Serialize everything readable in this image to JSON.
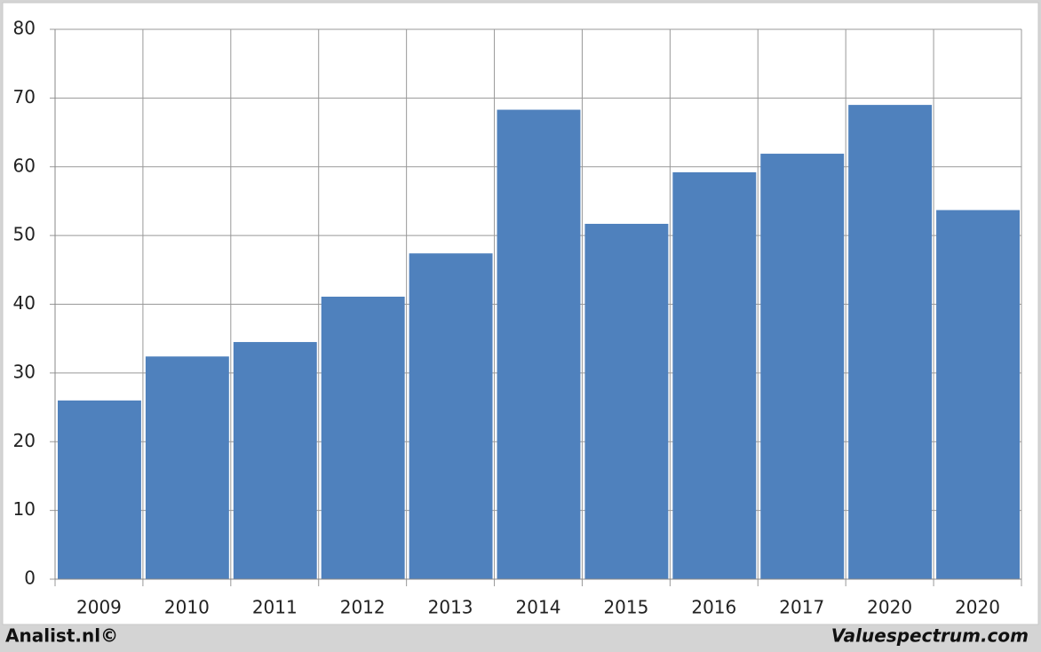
{
  "chart_data": {
    "type": "bar",
    "categories": [
      "2009",
      "2010",
      "2011",
      "2012",
      "2013",
      "2014",
      "2015",
      "2016",
      "2017",
      "2020",
      "2020"
    ],
    "values": [
      26.0,
      32.4,
      34.5,
      41.1,
      47.4,
      68.3,
      51.7,
      59.2,
      61.9,
      69.0,
      53.7
    ],
    "color": "#4f81bd",
    "ylim": [
      0,
      80
    ],
    "yticks": [
      0,
      10,
      20,
      30,
      40,
      50,
      60,
      70,
      80
    ],
    "grid": true,
    "source_left": "Analist.nl©",
    "source_right": "Valuespectrum.com"
  }
}
